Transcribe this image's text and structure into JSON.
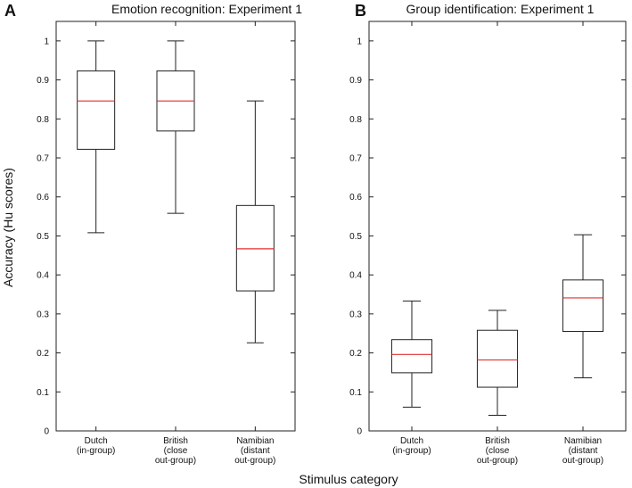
{
  "figure": {
    "ylabel": "Accuracy (Hu scores)",
    "xlabel": "Stimulus category"
  },
  "chart_data": [
    {
      "type": "box",
      "panel": "A",
      "title": "Emotion recognition: Experiment 1",
      "ylim": [
        0,
        1.05
      ],
      "yticks": [
        "0",
        "0.1",
        "0.2",
        "0.3",
        "0.4",
        "0.5",
        "0.6",
        "0.7",
        "0.8",
        "0.9",
        "1"
      ],
      "categories": [
        [
          "Dutch",
          "(in-group)"
        ],
        [
          "British",
          "(close",
          "out-group)"
        ],
        [
          "Namibian",
          "(distant",
          "out-group)"
        ]
      ],
      "boxes": [
        {
          "min": 0.508,
          "q1": 0.722,
          "median": 0.846,
          "q3": 0.923,
          "max": 1.0
        },
        {
          "min": 0.558,
          "q1": 0.769,
          "median": 0.846,
          "q3": 0.923,
          "max": 1.0
        },
        {
          "min": 0.226,
          "q1": 0.359,
          "median": 0.467,
          "q3": 0.578,
          "max": 0.846
        }
      ]
    },
    {
      "type": "box",
      "panel": "B",
      "title": "Group identification: Experiment 1",
      "ylim": [
        0,
        1.05
      ],
      "yticks": [
        "0",
        "0.1",
        "0.2",
        "0.3",
        "0.4",
        "0.5",
        "0.6",
        "0.7",
        "0.8",
        "0.9",
        "1"
      ],
      "categories": [
        [
          "Dutch",
          "(in-group)"
        ],
        [
          "British",
          "(close",
          "out-group)"
        ],
        [
          "Namibian",
          "(distant",
          "out-group)"
        ]
      ],
      "boxes": [
        {
          "min": 0.061,
          "q1": 0.149,
          "median": 0.196,
          "q3": 0.234,
          "max": 0.333
        },
        {
          "min": 0.04,
          "q1": 0.112,
          "median": 0.182,
          "q3": 0.258,
          "max": 0.309
        },
        {
          "min": 0.136,
          "q1": 0.255,
          "median": 0.341,
          "q3": 0.387,
          "max": 0.503
        }
      ]
    }
  ],
  "colors": {
    "box": "#222222",
    "median": "#e03030",
    "axis": "#222222"
  }
}
